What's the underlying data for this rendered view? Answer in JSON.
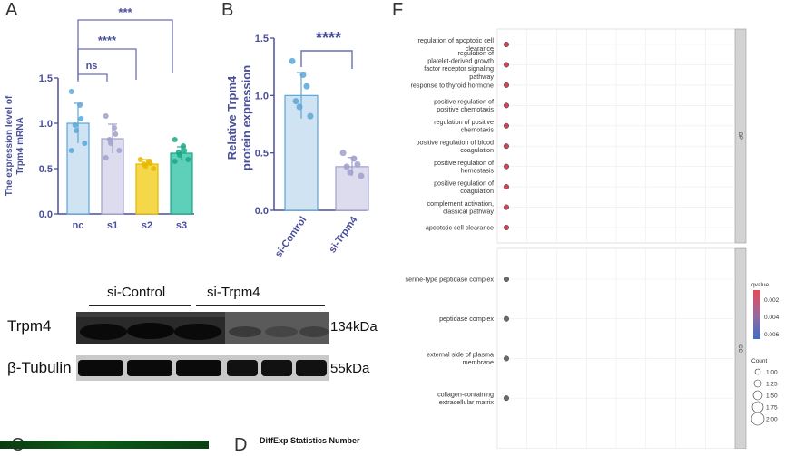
{
  "panel_labels": {
    "a": "A",
    "b": "B",
    "c": "C",
    "d": "D",
    "f": "F"
  },
  "panel_a": {
    "ylabel_line1": "The expression level of",
    "ylabel_line2": "Trpm4 mRNA",
    "significance": {
      "nc_s1": "ns",
      "nc_s2": "****",
      "nc_s3": "***"
    }
  },
  "panel_b": {
    "ylabel_line1": "Relative Trpm4",
    "ylabel_line2": "protein expression",
    "significance": "****"
  },
  "western_blot": {
    "group_labels": [
      "si-Control",
      "si-Trpm4"
    ],
    "rows": [
      {
        "label": "Trpm4",
        "size": "134kDa"
      },
      {
        "label": "β-Tubulin",
        "size": "55kDa"
      }
    ]
  },
  "panel_d": {
    "title": "DiffExp Statistics Number"
  },
  "panel_f": {
    "facets": [
      "BP",
      "CC"
    ],
    "legend": {
      "qvalue_title": "qvalue",
      "qvalue_ticks": [
        "0.002",
        "0.004",
        "0.006"
      ],
      "count_title": "Count",
      "count_ticks": [
        "1.00",
        "1.25",
        "1.50",
        "1.75",
        "2.00"
      ]
    }
  },
  "chart_data": [
    {
      "type": "bar",
      "panel": "A",
      "categories": [
        "nc",
        "s1",
        "s2",
        "s3"
      ],
      "values": [
        1.0,
        0.83,
        0.55,
        0.67
      ],
      "errors": [
        0.22,
        0.16,
        0.05,
        0.07
      ],
      "points": [
        [
          1.35,
          1.2,
          1.05,
          0.98,
          0.92,
          0.78,
          0.7
        ],
        [
          1.08,
          0.95,
          0.88,
          0.82,
          0.78,
          0.7,
          0.62
        ],
        [
          0.6,
          0.58,
          0.56,
          0.55,
          0.53,
          0.5
        ],
        [
          0.82,
          0.75,
          0.7,
          0.68,
          0.65,
          0.6,
          0.58
        ]
      ],
      "colors": [
        "#cfe3f2",
        "#dcdcee",
        "#f5d84a",
        "#5ed0b9"
      ],
      "edge_colors": [
        "#5aa6d9",
        "#9f9fcc",
        "#e6b800",
        "#1aa886"
      ],
      "ylim": [
        0,
        1.5
      ],
      "yticks": [
        "0.0",
        "0.5",
        "1.0",
        "1.5"
      ]
    },
    {
      "type": "bar",
      "panel": "B",
      "categories": [
        "si-Control",
        "si-Trpm4"
      ],
      "values": [
        1.0,
        0.38
      ],
      "errors": [
        0.2,
        0.08
      ],
      "points": [
        [
          1.3,
          1.18,
          1.08,
          0.95,
          0.9,
          0.82
        ],
        [
          0.5,
          0.45,
          0.4,
          0.38,
          0.33,
          0.3
        ]
      ],
      "colors": [
        "#cfe3f2",
        "#dcdcee"
      ],
      "edge_colors": [
        "#5aa6d9",
        "#9f9fcc"
      ],
      "ylim": [
        0,
        1.5
      ],
      "yticks": [
        "0.0",
        "0.5",
        "1.0",
        "1.5"
      ]
    },
    {
      "type": "scatter",
      "panel": "F",
      "facets": [
        {
          "name": "BP",
          "terms": [
            "regulation of apoptotic cell clearance",
            "regulation of platelet-derived growth factor receptor signaling pathway",
            "response to thyroid hormone",
            "positive regulation of positive chemotaxis",
            "regulation of positive chemotaxis",
            "positive regulation of blood coagulation",
            "positive regulation of hemostasis",
            "positive regulation of coagulation",
            "complement activation, classical pathway",
            "apoptotic cell clearance"
          ],
          "term_lines": [
            [
              "regulation of apoptotic cell",
              "clearance"
            ],
            [
              "regulation of",
              "platelet-derived growth",
              "factor receptor signaling",
              "pathway"
            ],
            [
              "response to thyroid hormone"
            ],
            [
              "positive regulation of",
              "positive chemotaxis"
            ],
            [
              "regulation of positive",
              "chemotaxis"
            ],
            [
              "positive regulation of blood",
              "coagulation"
            ],
            [
              "positive regulation of",
              "hemostasis"
            ],
            [
              "positive regulation of",
              "coagulation"
            ],
            [
              "complement activation,",
              "classical pathway"
            ],
            [
              "apoptotic cell clearance"
            ]
          ],
          "count": [
            1,
            1,
            1,
            1,
            1,
            1,
            1,
            1,
            1,
            1
          ],
          "color": "#c9475a"
        },
        {
          "name": "CC",
          "terms": [
            "serine-type peptidase complex",
            "peptidase complex",
            "external side of plasma membrane",
            "collagen-containing extracellular matrix"
          ],
          "term_lines": [
            [
              "serine-type peptidase complex"
            ],
            [
              "peptidase complex"
            ],
            [
              "external side of plasma",
              "membrane"
            ],
            [
              "collagen-containing",
              "extracellular matrix"
            ]
          ],
          "count": [
            1,
            1,
            1,
            1
          ],
          "color": "#6a6a6a"
        }
      ]
    }
  ]
}
